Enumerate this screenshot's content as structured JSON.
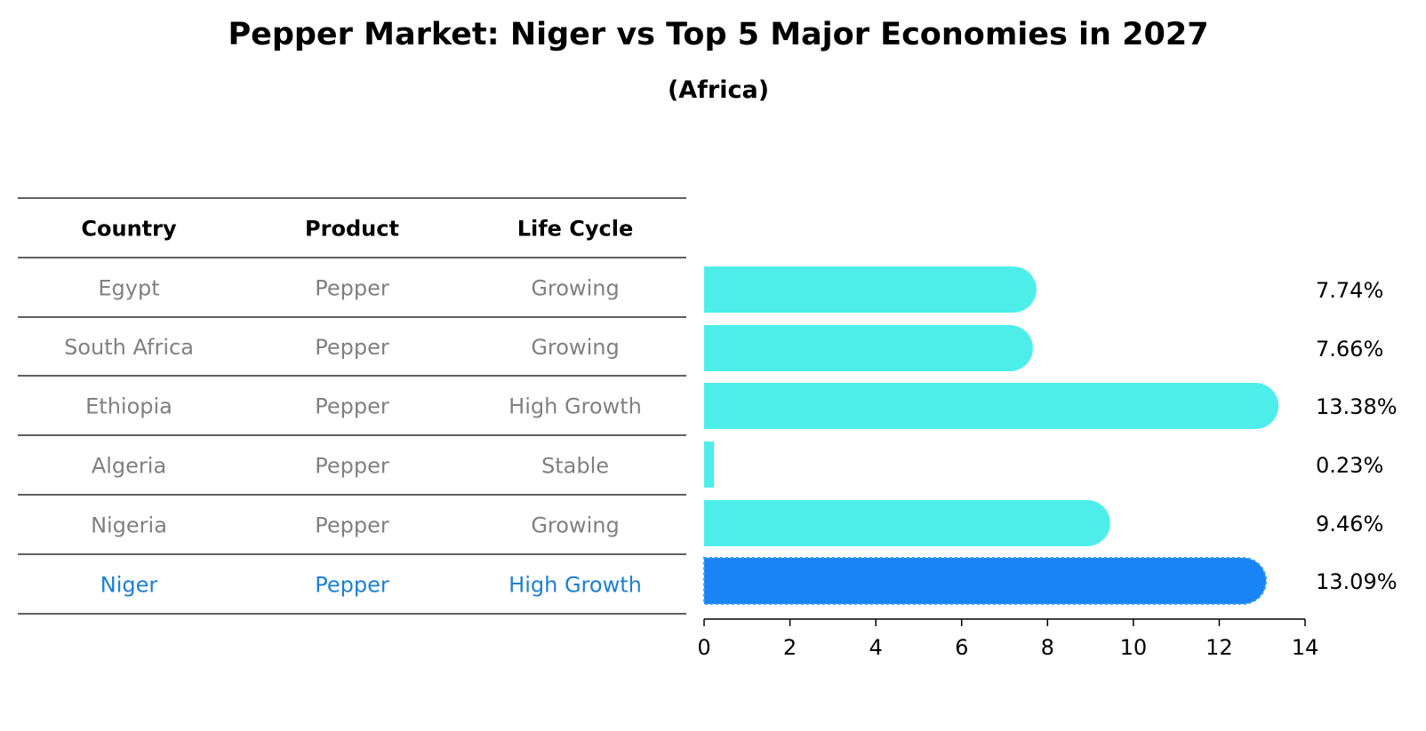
{
  "chart_data": {
    "type": "bar",
    "orientation": "horizontal",
    "title": "Pepper Market: Niger vs Top 5 Major Economies in 2027",
    "subtitle": "(Africa)",
    "table": {
      "columns": [
        "Country",
        "Product",
        "Life Cycle"
      ],
      "rows": [
        [
          "Egypt",
          "Pepper",
          "Growing"
        ],
        [
          "South Africa",
          "Pepper",
          "Growing"
        ],
        [
          "Ethiopia",
          "Pepper",
          "High Growth"
        ],
        [
          "Algeria",
          "Pepper",
          "Stable"
        ],
        [
          "Nigeria",
          "Pepper",
          "Growing"
        ],
        [
          "Niger",
          "Pepper",
          "High Growth"
        ]
      ],
      "highlight_row": 5
    },
    "categories": [
      "Egypt",
      "South Africa",
      "Ethiopia",
      "Algeria",
      "Nigeria",
      "Niger"
    ],
    "values": [
      7.74,
      7.66,
      13.38,
      0.23,
      9.46,
      13.09
    ],
    "value_labels": [
      "7.74%",
      "7.66%",
      "13.38%",
      "0.23%",
      "9.46%",
      "13.09%"
    ],
    "xlim": [
      0,
      14
    ],
    "xticks": [
      0,
      2,
      4,
      6,
      8,
      10,
      12,
      14
    ],
    "xlabel": "",
    "ylabel": "",
    "grid": false,
    "colors": {
      "bar": "#4DEEEA",
      "highlight_bar": "#1984F5",
      "highlight_text": "#1C7FD6",
      "muted_text": "#808080",
      "text": "#000000"
    }
  }
}
